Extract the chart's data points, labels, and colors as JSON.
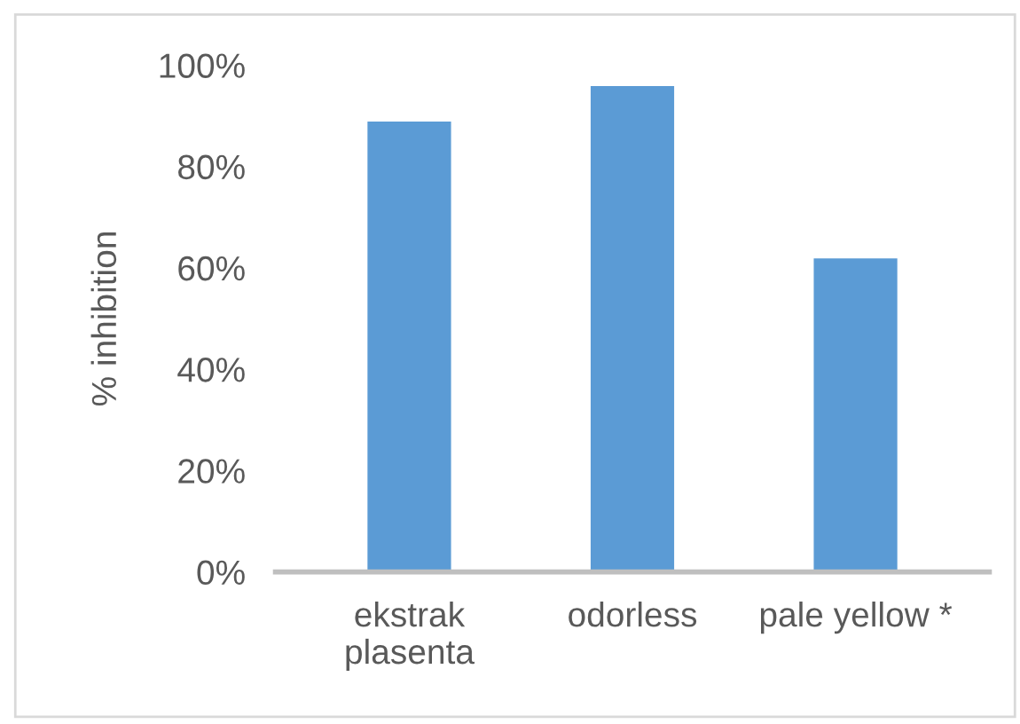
{
  "chart_data": {
    "type": "bar",
    "ylabel": "% inhibition",
    "categories": [
      "ekstrak\nplasenta",
      "odorless",
      "pale yellow *"
    ],
    "values": [
      89,
      96,
      62
    ],
    "color": "#5b9bd5",
    "ylim": [
      0,
      100
    ],
    "yticks": [
      {
        "value": 0,
        "label": "0%"
      },
      {
        "value": 20,
        "label": "20%"
      },
      {
        "value": 40,
        "label": "40%"
      },
      {
        "value": 60,
        "label": "60%"
      },
      {
        "value": 80,
        "label": "80%"
      },
      {
        "value": 100,
        "label": "100%"
      }
    ],
    "grid": false
  }
}
